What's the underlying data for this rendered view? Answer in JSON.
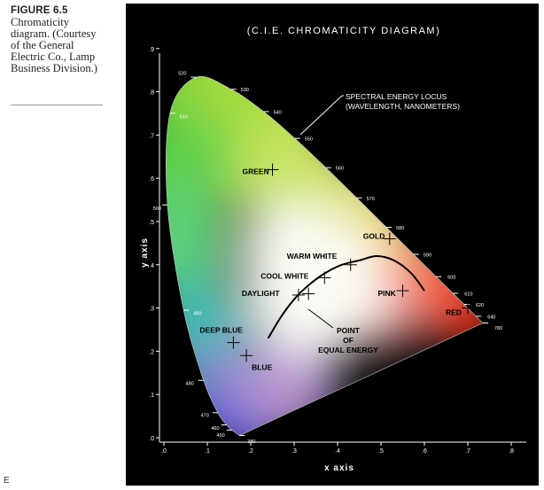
{
  "caption": {
    "figure_label": "FIGURE 6.5",
    "text": "Chromaticity diagram. (Courtesy of the General Electric Co., Lamp Business Division.)"
  },
  "corner_mark": "E",
  "diagram": {
    "title": "(C.I.E. CHROMATICITY DIAGRAM)",
    "xlabel": "x axis",
    "ylabel": "y axis",
    "x_ticks": [
      ".0",
      ".1",
      ".2",
      ".3",
      ".4",
      ".5",
      ".6",
      ".7",
      ".8"
    ],
    "y_ticks": [
      ".0",
      ".1",
      ".2",
      ".3",
      ".4",
      ".5",
      ".6",
      ".7",
      ".8",
      ".9"
    ],
    "locus_annotation": [
      "SPECTRAL ENERGY LOCUS",
      "(WAVELENGTH, NANOMETERS)"
    ],
    "wavelengths": [
      {
        "label": "380",
        "x": 0.1741,
        "y": 0.005
      },
      {
        "label": "450",
        "x": 0.1566,
        "y": 0.0177
      },
      {
        "label": "460",
        "x": 0.144,
        "y": 0.0297
      },
      {
        "label": "470",
        "x": 0.1241,
        "y": 0.0578
      },
      {
        "label": "480",
        "x": 0.0913,
        "y": 0.1327
      },
      {
        "label": "490",
        "x": 0.0454,
        "y": 0.295
      },
      {
        "label": "500",
        "x": 0.0082,
        "y": 0.5384
      },
      {
        "label": "510",
        "x": 0.0139,
        "y": 0.7502
      },
      {
        "label": "520",
        "x": 0.0743,
        "y": 0.8338
      },
      {
        "label": "530",
        "x": 0.1547,
        "y": 0.8059
      },
      {
        "label": "540",
        "x": 0.2296,
        "y": 0.7543
      },
      {
        "label": "550",
        "x": 0.3016,
        "y": 0.6923
      },
      {
        "label": "560",
        "x": 0.3731,
        "y": 0.6245
      },
      {
        "label": "570",
        "x": 0.4441,
        "y": 0.5547
      },
      {
        "label": "580",
        "x": 0.5125,
        "y": 0.4866
      },
      {
        "label": "590",
        "x": 0.5752,
        "y": 0.4242
      },
      {
        "label": "600",
        "x": 0.627,
        "y": 0.3725
      },
      {
        "label": "610",
        "x": 0.6658,
        "y": 0.334
      },
      {
        "label": "620",
        "x": 0.6915,
        "y": 0.3083
      },
      {
        "label": "640",
        "x": 0.719,
        "y": 0.2809
      },
      {
        "label": "780",
        "x": 0.7347,
        "y": 0.2653
      }
    ],
    "points": [
      {
        "label": "GREEN",
        "x": 0.25,
        "y": 0.62
      },
      {
        "label": "GOLD",
        "x": 0.52,
        "y": 0.46
      },
      {
        "label": "WARM WHITE",
        "x": 0.43,
        "y": 0.4
      },
      {
        "label": "COOL WHITE",
        "x": 0.37,
        "y": 0.37
      },
      {
        "label": "DAYLIGHT",
        "x": 0.31,
        "y": 0.33
      },
      {
        "label": "PINK",
        "x": 0.55,
        "y": 0.34
      },
      {
        "label": "RED",
        "x": 0.7,
        "y": 0.3
      },
      {
        "label": "DEEP BLUE",
        "x": 0.16,
        "y": 0.22
      },
      {
        "label": "BLUE",
        "x": 0.19,
        "y": 0.19
      },
      {
        "label": "POINT OF EQUAL ENERGY",
        "x": 0.333,
        "y": 0.333
      }
    ],
    "equal_energy_label": [
      "POINT",
      "OF",
      "EQUAL ENERGY"
    ],
    "colors": {
      "background": "#000000",
      "text": "#ffffff",
      "white_point": "#fbfbf5"
    }
  }
}
